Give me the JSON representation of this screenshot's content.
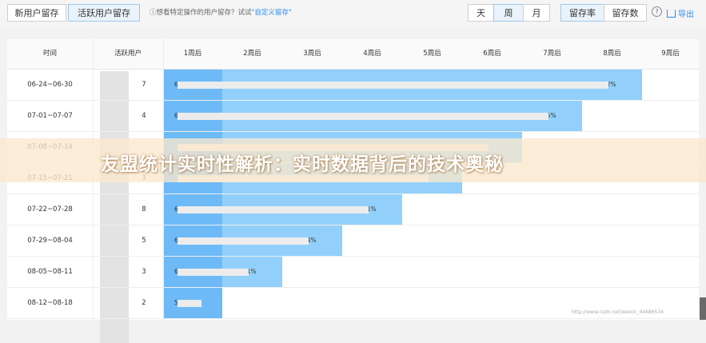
{
  "toolbar": {
    "tab_new": "新用户留存",
    "tab_active": "活跃用户留存",
    "hint_prefix": "ⓘ想看特定操作的用户留存？试试",
    "hint_link": "\"自定义留存\"",
    "period_day": "天",
    "period_week": "周",
    "period_month": "月",
    "metric_rate": "留存率",
    "metric_count": "留存数",
    "help": "?",
    "export": "导出"
  },
  "table": {
    "headers": [
      "时间",
      "活跃用户",
      "1周后",
      "2周后",
      "3周后",
      "4周后",
      "5周后",
      "6周后",
      "7周后",
      "8周后",
      "9周后"
    ],
    "rows": [
      {
        "date": "06-24~06-30",
        "users": "7",
        "values": [
          "64.56%",
          "57.69%",
          "52.88%",
          "47.3%",
          "46.2%",
          "44.23%",
          "42.47%",
          "42.32%"
        ]
      },
      {
        "date": "07-01~07-07",
        "users": "4",
        "values": [
          "67.44%",
          "54.83%",
          "68.56%",
          "47.71%",
          "44.08%",
          "43.47%",
          "42.15%"
        ]
      },
      {
        "date": "07-08~07-14",
        "users": "",
        "values": [
          "",
          "",
          "",
          "",
          "",
          ""
        ]
      },
      {
        "date": "07-15~07-21",
        "users": "3",
        "values": [
          "",
          "",
          "",
          "",
          ""
        ]
      },
      {
        "date": "07-22~07-28",
        "users": "8",
        "values": [
          "65.95%",
          "59.07%",
          "55.30%",
          "54.11%"
        ]
      },
      {
        "date": "07-29~08-04",
        "users": "5",
        "values": [
          "68.33%",
          "64.68%",
          "61.84%"
        ]
      },
      {
        "date": "08-05~08-11",
        "users": "3",
        "values": [
          "63.97%",
          "57.61%"
        ]
      },
      {
        "date": "08-12~08-18",
        "users": "2",
        "values": [
          "59.84%"
        ]
      }
    ]
  },
  "overlay_title": "友盟统计实时性解析：实时数据背后的技术奥秘",
  "watermark": "http://www.csdn.net/weixin_44686534",
  "colors": {
    "first_week": "#6dbaf7",
    "later_weeks": "#92d0fb",
    "accent": "#2d8cf0"
  }
}
